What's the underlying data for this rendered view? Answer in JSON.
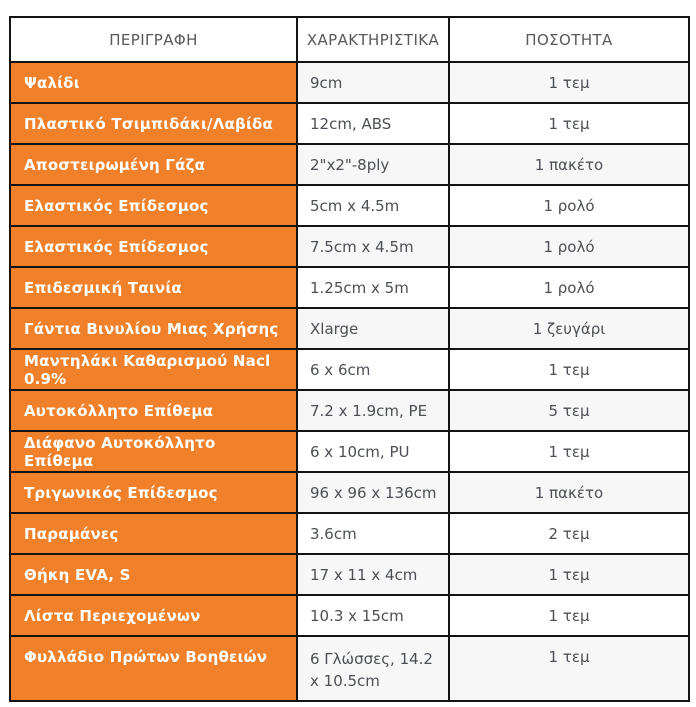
{
  "colors": {
    "accent_orange": "#F0812A",
    "border_black": "#141414",
    "header_text": "#56585D",
    "cell_text": "#4C4F55",
    "stripe_gray": "#F7F7F7"
  },
  "table": {
    "headers": [
      {
        "label": "ΠΕΡΙΓΡΑΦΗ"
      },
      {
        "label": "ΧΑΡΑΚΤΗΡΙΣΤΙΚΑ"
      },
      {
        "label": "ΠΟΣΟΤΗΤΑ"
      }
    ],
    "rows": [
      {
        "description": "Ψαλίδι",
        "characteristics": "9cm",
        "quantity": "1 τεμ"
      },
      {
        "description": "Πλαστικό Τσιμπιδάκι/Λαβίδα",
        "characteristics": "12cm, ABS",
        "quantity": "1 τεμ"
      },
      {
        "description": "Αποστειρωμένη Γάζα",
        "characteristics": "2\"x2\"-8ply",
        "quantity": "1 πακέτο"
      },
      {
        "description": "Ελαστικός Επίδεσμος",
        "characteristics": "5cm x 4.5m",
        "quantity": "1 ρολό"
      },
      {
        "description": "Ελαστικός Επίδεσμος",
        "characteristics": "7.5cm x 4.5m",
        "quantity": "1 ρολό"
      },
      {
        "description": "Επιδεσμική Ταινία",
        "characteristics": "1.25cm x 5m",
        "quantity": "1 ρολό"
      },
      {
        "description": "Γάντια Βινυλίου Μιας Χρήσης",
        "characteristics": "Xlarge",
        "quantity": "1 ζευγάρι"
      },
      {
        "description": "Μαντηλάκι Καθαρισμού Nacl 0.9%",
        "characteristics": "6 x 6cm",
        "quantity": "1 τεμ"
      },
      {
        "description": "Αυτοκόλλητο Επίθεμα",
        "characteristics": "7.2 x 1.9cm, PE",
        "quantity": "5 τεμ"
      },
      {
        "description": "Διάφανο Αυτοκόλλητο Επίθεμα",
        "characteristics": "6 x 10cm, PU",
        "quantity": "1 τεμ"
      },
      {
        "description": "Τριγωνικός Επίδεσμος",
        "characteristics": "96 x 96 x 136cm",
        "quantity": "1 πακέτο"
      },
      {
        "description": "Παραμάνες",
        "characteristics": "3.6cm",
        "quantity": "2 τεμ"
      },
      {
        "description": "Θήκη EVA, S",
        "characteristics": "17 x 11 x 4cm",
        "quantity": "1 τεμ"
      },
      {
        "description": "Λίστα Περιεχομένων",
        "characteristics": "10.3 x 15cm",
        "quantity": "1 τεμ"
      },
      {
        "description": "Φυλλάδιο Πρώτων Βοηθειών",
        "characteristics": "6 Γλώσσες, 14.2 x 10.5cm",
        "quantity": "1 τεμ"
      }
    ]
  }
}
